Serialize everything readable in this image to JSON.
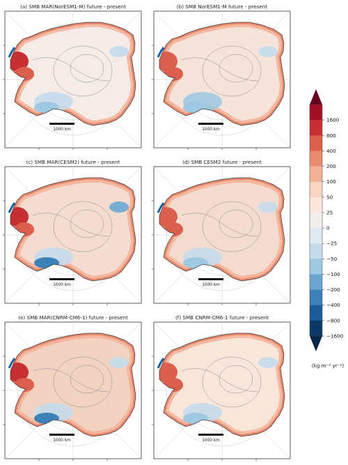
{
  "panels": [
    {
      "title": "(a) SMB MAR(NorESM1-M) future - present",
      "scalebar_label": "1000 km"
    },
    {
      "title": "(b) SMB NorESM1-M future - present",
      "scalebar_label": "1000 km"
    },
    {
      "title": "(c) SMB MAR(CESM2) future - present",
      "scalebar_label": "1000 km"
    },
    {
      "title": "(d) SMB CESM2 future - present",
      "scalebar_label": "1000 km"
    },
    {
      "title": "(e) SMB MAR(CNRM-CM6-1) future - present",
      "scalebar_label": "1000 km"
    },
    {
      "title": "(f) SMB CNRM-CM6-1 future - present",
      "scalebar_label": "1000 km"
    }
  ],
  "colorbar": {
    "unit_text": "(kg m⁻² yr⁻¹)",
    "ticks": [
      "1600",
      "800",
      "400",
      "200",
      "100",
      "50",
      "25",
      "0",
      "−25",
      "−50",
      "−100",
      "−200",
      "−400",
      "−800",
      "−1600"
    ],
    "colors": [
      "#67001f",
      "#a50f25",
      "#c72f33",
      "#dc5f4d",
      "#ea8a6e",
      "#f4b196",
      "#f9d4c0",
      "#fbe6da",
      "#f2eeec",
      "#dfeaf2",
      "#c5dcec",
      "#9fc9e2",
      "#6aa7d0",
      "#3c82b9",
      "#1c5c9c",
      "#0b3866",
      "#052549"
    ],
    "extend": "both"
  },
  "chart_data": {
    "type": "heatmap",
    "title": "",
    "variable": "SMB future - present",
    "unit": "(kg m⁻² yr⁻¹)",
    "colorbar_bounds": [
      -1600,
      -800,
      -400,
      -200,
      -100,
      -50,
      -25,
      0,
      25,
      50,
      100,
      200,
      400,
      800,
      1600
    ],
    "panels": [
      "(a) SMB MAR(NorESM1-M) future - present",
      "(b) SMB NorESM1-M future - present",
      "(c) SMB MAR(CESM2) future - present",
      "(d) SMB CESM2 future - present",
      "(e) SMB MAR(CNRM-CM6-1) future - present",
      "(f) SMB CNRM-CM6-1 future - present"
    ],
    "scale_bar": "1000 km",
    "legend_position": "right"
  }
}
